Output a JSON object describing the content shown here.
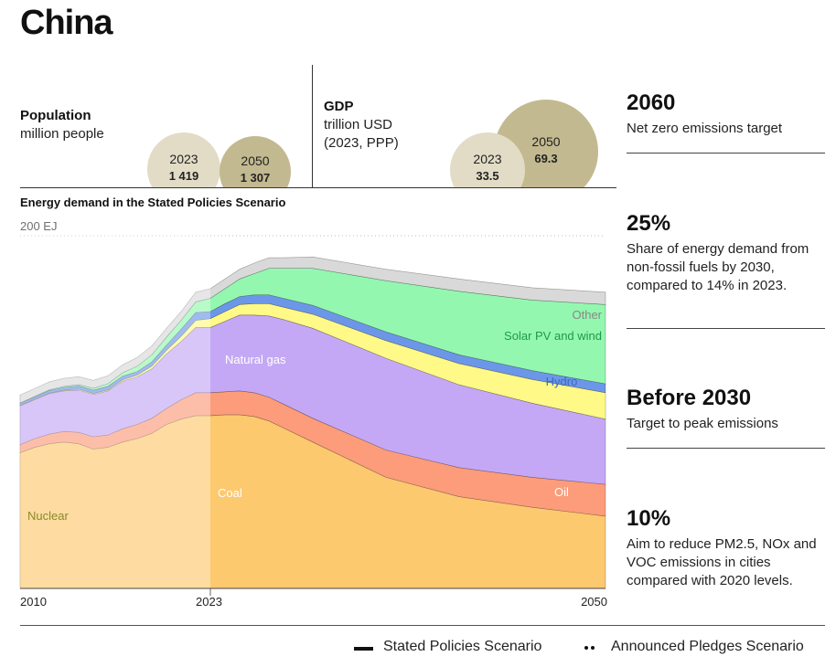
{
  "page": {
    "title": "China"
  },
  "population": {
    "label": "Population",
    "unit": "million people",
    "bubbles": [
      {
        "year": "2023",
        "value": "1 419",
        "color": "#e2dcc6"
      },
      {
        "year": "2050",
        "value": "1 307",
        "color": "#c3b990"
      }
    ]
  },
  "gdp": {
    "label": "GDP",
    "unit_line1": "trillion USD",
    "unit_line2": "(2023, PPP)",
    "bubbles": [
      {
        "year": "2023",
        "value": "33.5",
        "color": "#e2dcc6"
      },
      {
        "year": "2050",
        "value": "69.3",
        "color": "#c3b990"
      }
    ]
  },
  "stats": [
    {
      "value": "2060",
      "desc": "Net zero emissions target"
    },
    {
      "value": "25%",
      "desc": "Share of energy demand from non-fossil fuels by 2030, compared to 14% in 2023."
    },
    {
      "value": "Before 2030",
      "desc": "Target to peak emissions"
    },
    {
      "value": "10%",
      "desc": "Aim to reduce PM2.5, NOx and VOC emissions in cities compared with 2020 levels."
    }
  ],
  "legend": {
    "stated": "Stated Policies Scenario",
    "announced": "Announced Pledges Scenario"
  },
  "chart_data": {
    "type": "area",
    "title": "Energy demand in the Stated Policies Scenario",
    "ytick_label": "200 EJ",
    "ylim": [
      0,
      200
    ],
    "xlim": [
      2010,
      2050
    ],
    "xtick_labels": [
      "2010",
      "2023",
      "2050"
    ],
    "divider_year": 2023,
    "x": [
      2010,
      2011,
      2012,
      2013,
      2014,
      2015,
      2016,
      2017,
      2018,
      2019,
      2020,
      2021,
      2022,
      2023,
      2024,
      2025,
      2026,
      2027,
      2028,
      2030,
      2035,
      2040,
      2045,
      2050
    ],
    "series": [
      {
        "name": "Coal",
        "color": "#fdc96f",
        "values": [
          77,
          80,
          82,
          83,
          82,
          79,
          80,
          83,
          85,
          88,
          93,
          96,
          98,
          98,
          98.5,
          98.5,
          97.5,
          95,
          91,
          83,
          63,
          52,
          46,
          41
        ]
      },
      {
        "name": "Oil",
        "color": "#fc9c7b",
        "values": [
          4.5,
          5,
          5.5,
          6,
          6.5,
          7,
          7,
          7.5,
          8,
          8.5,
          9,
          11,
          13,
          13,
          13,
          13.5,
          13.5,
          13.5,
          13.5,
          13.5,
          15.5,
          16.5,
          17,
          18
        ]
      },
      {
        "name": "Natural gas",
        "color": "#c5a8f5",
        "values": [
          22,
          22,
          23,
          23,
          24,
          24,
          25,
          27,
          27,
          28,
          31,
          33,
          37,
          37,
          40,
          43,
          44,
          46,
          48,
          51,
          52,
          47,
          42,
          37
        ]
      },
      {
        "name": "Nuclear",
        "color": "#fff987",
        "values": [
          0.3,
          0.3,
          0.3,
          0.4,
          0.5,
          0.5,
          0.6,
          0.8,
          1,
          1.5,
          2,
          3,
          4,
          5,
          5.5,
          6,
          6.5,
          7,
          7,
          8,
          10,
          12,
          13.5,
          15
        ]
      },
      {
        "name": "Hydro",
        "color": "#6c97e9",
        "values": [
          1.2,
          1.3,
          1.5,
          1.6,
          1.8,
          2,
          2,
          2,
          2,
          2.5,
          3,
          4,
          4.5,
          4,
          4.5,
          4.5,
          5,
          5,
          5,
          5,
          5,
          5,
          5,
          5
        ]
      },
      {
        "name": "Solar PV and wind",
        "color": "#94f7b0",
        "values": [
          0.2,
          0.3,
          0.4,
          0.6,
          0.8,
          1,
          1.5,
          2,
          3,
          4,
          4.5,
          5,
          6,
          7.5,
          8.5,
          10,
          12,
          15,
          17,
          21,
          29,
          36,
          40,
          45
        ]
      },
      {
        "name": "Other",
        "color": "#d9d9d9",
        "values": [
          4.5,
          4.5,
          4.5,
          4.5,
          4.5,
          4.5,
          4.5,
          4.5,
          5,
          5,
          5,
          5,
          5.5,
          5.5,
          5.5,
          5.5,
          6,
          6,
          6,
          6.5,
          6.5,
          7,
          7,
          7
        ]
      }
    ]
  }
}
